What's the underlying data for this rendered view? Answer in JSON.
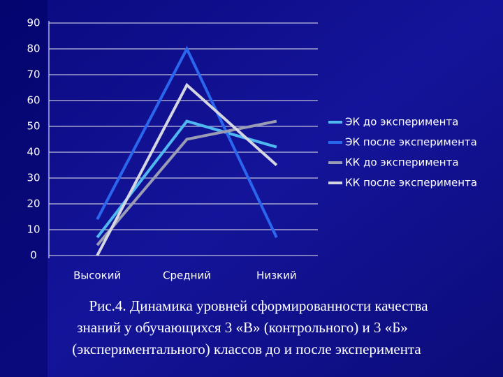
{
  "chart_data": {
    "type": "line",
    "categories": [
      "Высокий",
      "Средний",
      "Низкий"
    ],
    "series": [
      {
        "name": "ЭК до эксперимента",
        "color": "#4fb8f0",
        "values": [
          7,
          52,
          42
        ]
      },
      {
        "name": "ЭК после эксперимента",
        "color": "#2a66ee",
        "values": [
          14,
          80,
          7
        ]
      },
      {
        "name": "КК до эксперимента",
        "color": "#9a9cb4",
        "values": [
          4,
          45,
          52
        ]
      },
      {
        "name": "КК после эксперимента",
        "color": "#d4d6e2",
        "values": [
          0,
          66,
          35
        ]
      }
    ],
    "ylim": [
      0,
      90
    ],
    "yticks": [
      0,
      10,
      20,
      30,
      40,
      50,
      60,
      70,
      80,
      90
    ],
    "grid": true,
    "legend": "right",
    "caption": [
      "Рис.4. Динамика уровней сформированности качества",
      "знаний у обучающихся 3 «В» (контрольного) и 3 «Б»",
      "(экспериментального) классов до и после эксперимента"
    ]
  }
}
